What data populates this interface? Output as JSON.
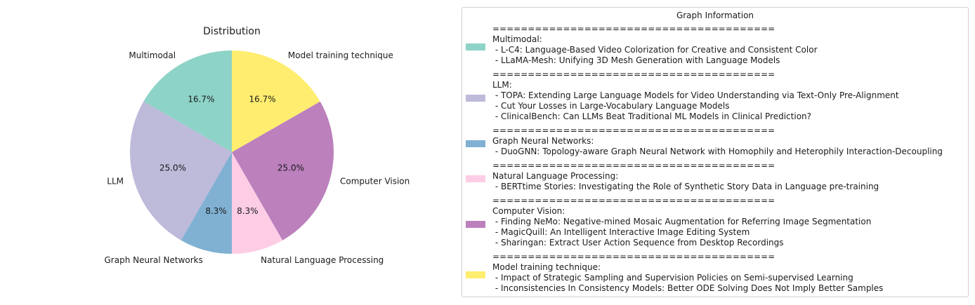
{
  "chart_data": {
    "type": "pie",
    "title": "Distribution",
    "categories": [
      "Multimodal",
      "LLM",
      "Graph Neural Networks",
      "Natural Language Processing",
      "Computer Vision",
      "Model training technique"
    ],
    "values": [
      16.7,
      25.0,
      8.3,
      8.3,
      25.0,
      16.7
    ],
    "value_labels": [
      "16.7%",
      "25.0%",
      "8.3%",
      "8.3%",
      "25.0%",
      "16.7%"
    ],
    "colors": [
      "#8dd3c7",
      "#bebada",
      "#80b1d3",
      "#fccde5",
      "#bc80bd",
      "#ffed6f"
    ],
    "start_angle_deg": 90,
    "direction": "counterclockwise",
    "legend_placement": "right"
  },
  "legend": {
    "title": "Graph Information",
    "entries": [
      {
        "separator": "========================================",
        "category": "Multimodal:",
        "items": [
          " - L-C4: Language-Based Video Colorization for Creative and Consistent Color",
          " - LLaMA-Mesh: Unifying 3D Mesh Generation with Language Models"
        ]
      },
      {
        "separator": "========================================",
        "category": "LLM:",
        "items": [
          " - TOPA: Extending Large Language Models for Video Understanding via Text-Only Pre-Alignment",
          " - Cut Your Losses in Large-Vocabulary Language Models",
          " - ClinicalBench: Can LLMs Beat Traditional ML Models in Clinical Prediction?"
        ]
      },
      {
        "separator": "========================================",
        "category": "Graph Neural Networks:",
        "items": [
          " - DuoGNN: Topology-aware Graph Neural Network with Homophily and Heterophily Interaction-Decoupling"
        ]
      },
      {
        "separator": "========================================",
        "category": "Natural Language Processing:",
        "items": [
          " - BERTtime Stories: Investigating the Role of Synthetic Story Data in Language pre-training"
        ]
      },
      {
        "separator": "========================================",
        "category": "Computer Vision:",
        "items": [
          " - Finding NeMo: Negative-mined Mosaic Augmentation for Referring Image Segmentation",
          " - MagicQuill: An Intelligent Interactive Image Editing System",
          " - Sharingan: Extract User Action Sequence from Desktop Recordings"
        ]
      },
      {
        "separator": "========================================",
        "category": "Model training technique:",
        "items": [
          " - Impact of Strategic Sampling and Supervision Policies on Semi-supervised Learning",
          " - Inconsistencies In Consistency Models: Better ODE Solving Does Not Imply Better Samples"
        ]
      }
    ]
  }
}
